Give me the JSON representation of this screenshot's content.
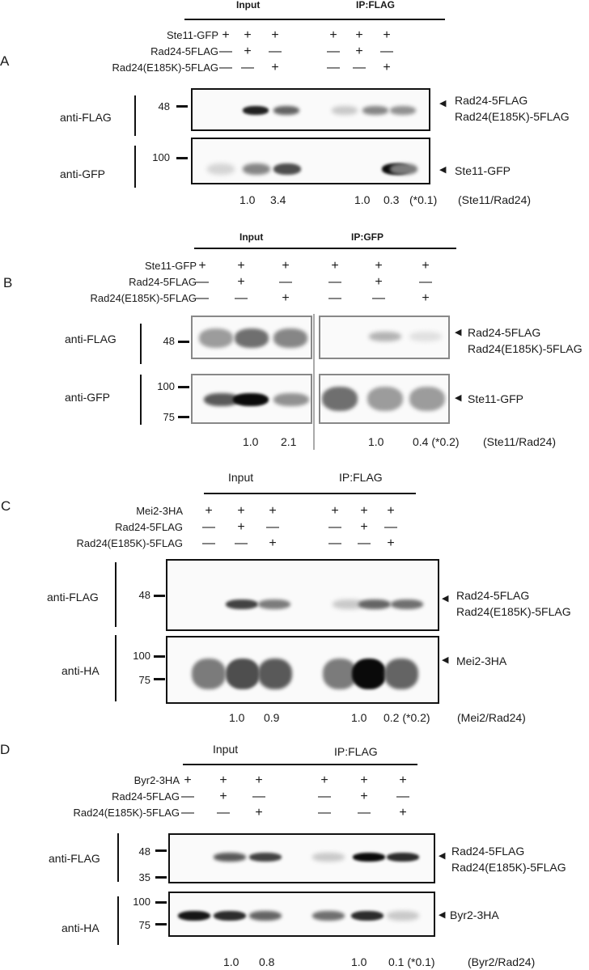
{
  "panels": [
    {
      "letter": "A",
      "input_header": "Input",
      "ip_header": "IP:FLAG",
      "row_labels": [
        "Ste11-GFP",
        "Rad24-5FLAG",
        "Rad24(E185K)-5FLAG"
      ],
      "signs": [
        [
          "+",
          "+",
          "+",
          "+",
          "+",
          "+"
        ],
        [
          "—",
          "+",
          "—",
          "—",
          "+",
          "—"
        ],
        [
          "—",
          "—",
          "+",
          "—",
          "—",
          "+"
        ]
      ],
      "blots": [
        {
          "antibody": "anti-FLAG",
          "markers": [
            "48"
          ],
          "targets": [
            "Rad24-5FLAG",
            "Rad24(E185K)-5FLAG"
          ]
        },
        {
          "antibody": "anti-GFP",
          "markers": [
            "100"
          ],
          "targets": [
            "Ste11-GFP"
          ]
        }
      ],
      "ratios": [
        "1.0",
        "3.4",
        "1.0",
        "0.3",
        "(*0.1)"
      ],
      "ratio_label": "(Ste11/Rad24)"
    },
    {
      "letter": "B",
      "input_header": "Input",
      "ip_header": "IP:GFP",
      "row_labels": [
        "Ste11-GFP",
        "Rad24-5FLAG",
        "Rad24(E185K)-5FLAG"
      ],
      "signs": [
        [
          "+",
          "+",
          "+",
          "+",
          "+",
          "+"
        ],
        [
          "—",
          "+",
          "—",
          "—",
          "+",
          "—"
        ],
        [
          "—",
          "—",
          "+",
          "—",
          "—",
          "+"
        ]
      ],
      "blots": [
        {
          "antibody": "anti-FLAG",
          "markers": [
            "48"
          ],
          "targets": [
            "Rad24-5FLAG",
            "Rad24(E185K)-5FLAG"
          ]
        },
        {
          "antibody": "anti-GFP",
          "markers": [
            "100",
            "75"
          ],
          "targets": [
            "Ste11-GFP"
          ]
        }
      ],
      "ratios": [
        "1.0",
        "2.1",
        "1.0",
        "0.4 (*0.2)"
      ],
      "ratio_label": "(Ste11/Rad24)"
    },
    {
      "letter": "C",
      "input_header": "Input",
      "ip_header": "IP:FLAG",
      "row_labels": [
        "Mei2-3HA",
        "Rad24-5FLAG",
        "Rad24(E185K)-5FLAG"
      ],
      "signs": [
        [
          "+",
          "+",
          "+",
          "+",
          "+",
          "+"
        ],
        [
          "—",
          "+",
          "—",
          "—",
          "+",
          "—"
        ],
        [
          "—",
          "—",
          "+",
          "—",
          "—",
          "+"
        ]
      ],
      "blots": [
        {
          "antibody": "anti-FLAG",
          "markers": [
            "48"
          ],
          "targets": [
            "Rad24-5FLAG",
            "Rad24(E185K)-5FLAG"
          ]
        },
        {
          "antibody": "anti-HA",
          "markers": [
            "100",
            "75"
          ],
          "targets": [
            "Mei2-3HA"
          ]
        }
      ],
      "ratios": [
        "1.0",
        "0.9",
        "1.0",
        "0.2 (*0.2)"
      ],
      "ratio_label": "(Mei2/Rad24)"
    },
    {
      "letter": "D",
      "input_header": "Input",
      "ip_header": "IP:FLAG",
      "row_labels": [
        "Byr2-3HA",
        "Rad24-5FLAG",
        "Rad24(E185K)-5FLAG"
      ],
      "signs": [
        [
          "+",
          "+",
          "+",
          "+",
          "+",
          "+"
        ],
        [
          "—",
          "+",
          "—",
          "—",
          "+",
          "—"
        ],
        [
          "—",
          "—",
          "+",
          "—",
          "—",
          "+"
        ]
      ],
      "blots": [
        {
          "antibody": "anti-FLAG",
          "markers": [
            "48",
            "35"
          ],
          "targets": [
            "Rad24-5FLAG",
            "Rad24(E185K)-5FLAG"
          ]
        },
        {
          "antibody": "anti-HA",
          "markers": [
            "100",
            "75"
          ],
          "targets": [
            "Byr2-3HA"
          ]
        }
      ],
      "ratios": [
        "1.0",
        "0.8",
        "1.0",
        "0.1 (*0.1)"
      ],
      "ratio_label": "(Byr2/Rad24)"
    }
  ],
  "band_intensities": {
    "A_flag": [
      0.0,
      0.9,
      0.6,
      0.15,
      0.45,
      0.4
    ],
    "A_gfp": [
      0.1,
      0.45,
      0.7,
      0.0,
      1.0,
      0.5
    ],
    "B_flag": [
      0.35,
      0.55,
      0.45,
      0.0,
      0.25,
      0.05
    ],
    "B_gfp": [
      0.65,
      1.0,
      0.4,
      0.55,
      0.35,
      0.35
    ],
    "C_flag": [
      0.0,
      0.75,
      0.5,
      0.15,
      0.6,
      0.55
    ],
    "C_ha": [
      0.5,
      0.7,
      0.65,
      0.5,
      1.0,
      0.6
    ],
    "D_flag": [
      0.0,
      0.65,
      0.75,
      0.15,
      1.0,
      0.85
    ],
    "D_ha": [
      0.95,
      0.85,
      0.6,
      0.55,
      0.85,
      0.15
    ]
  }
}
